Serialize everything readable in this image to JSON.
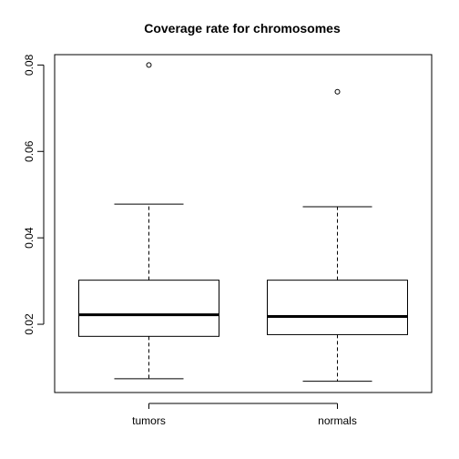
{
  "chart_data": {
    "type": "box",
    "title": "Coverage rate for chromosomes",
    "xlabel": "",
    "ylabel": "",
    "categories": [
      "tumors",
      "normals"
    ],
    "boxes": [
      {
        "name": "tumors",
        "whisker_low": 0.0074,
        "q1": 0.0172,
        "median": 0.0222,
        "q3": 0.0302,
        "whisker_high": 0.0478,
        "outliers": [
          0.08
        ]
      },
      {
        "name": "normals",
        "whisker_low": 0.0068,
        "q1": 0.0176,
        "median": 0.0218,
        "q3": 0.0302,
        "whisker_high": 0.0472,
        "outliers": [
          0.0738
        ]
      }
    ],
    "ylim": [
      0.0042,
      0.0824
    ],
    "yticks": [
      0.02,
      0.04,
      0.06,
      0.08
    ],
    "ytick_labels": [
      "0.02",
      "0.04",
      "0.06",
      "0.08"
    ],
    "grid": false,
    "legend": "none"
  }
}
